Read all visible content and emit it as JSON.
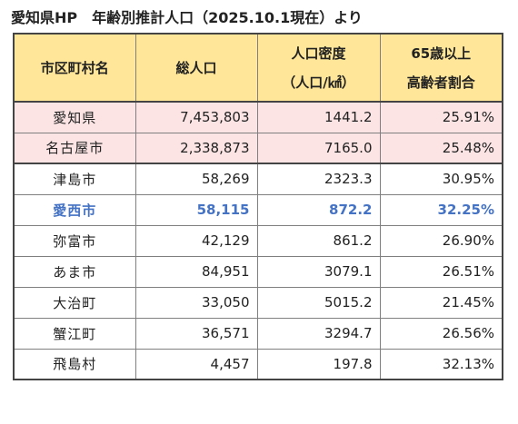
{
  "title": "愛知県HP　年齢別推計人口（2025.10.1現在）より",
  "table": {
    "headers": {
      "name": "市区町村名",
      "population": "総人口",
      "density_line1": "人口密度",
      "density_line2": "（人口/㎢）",
      "elderly_line1": "65歳以上",
      "elderly_line2": "高齢者割合"
    },
    "rows": [
      {
        "name": "愛知県",
        "population": "7,453,803",
        "density": "1441.2",
        "elderly": "25.91%"
      },
      {
        "name": "名古屋市",
        "population": "2,338,873",
        "density": "7165.0",
        "elderly": "25.48%"
      },
      {
        "name": "津島市",
        "population": "58,269",
        "density": "2323.3",
        "elderly": "30.95%"
      },
      {
        "name": "愛西市",
        "population": "58,115",
        "density": "872.2",
        "elderly": "32.25%"
      },
      {
        "name": "弥富市",
        "population": "42,129",
        "density": "861.2",
        "elderly": "26.90%"
      },
      {
        "name": "あま市",
        "population": "84,951",
        "density": "3079.1",
        "elderly": "26.51%"
      },
      {
        "name": "大治町",
        "population": "33,050",
        "density": "5015.2",
        "elderly": "21.45%"
      },
      {
        "name": "蟹江町",
        "population": "36,571",
        "density": "3294.7",
        "elderly": "26.56%"
      },
      {
        "name": "飛島村",
        "population": "4,457",
        "density": "197.8",
        "elderly": "32.13%"
      }
    ]
  },
  "colors": {
    "header_bg": "#ffe699",
    "pink_row_bg": "#fce4e4",
    "highlight_text": "#4472c4",
    "border": "#7f7f7f"
  }
}
